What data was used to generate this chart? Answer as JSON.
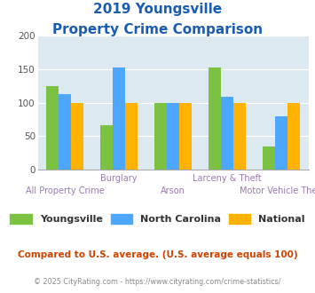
{
  "title_line1": "2019 Youngsville",
  "title_line2": "Property Crime Comparison",
  "categories": [
    "All Property Crime",
    "Burglary",
    "Arson",
    "Larceny & Theft",
    "Motor Vehicle Theft"
  ],
  "series": {
    "Youngsville": [
      125,
      67,
      100,
      152,
      35
    ],
    "North Carolina": [
      112,
      152,
      100,
      108,
      79
    ],
    "National": [
      100,
      100,
      100,
      100,
      100
    ]
  },
  "colors": {
    "Youngsville": "#7bc142",
    "North Carolina": "#4da6ff",
    "National": "#ffb300"
  },
  "ylim": [
    0,
    200
  ],
  "yticks": [
    0,
    50,
    100,
    150,
    200
  ],
  "background_color": "#dce9f0",
  "title_color": "#1a5cb0",
  "xlabel_color": "#9b7ab0",
  "legend_color": "#333333",
  "footer_text": "Compared to U.S. average. (U.S. average equals 100)",
  "copyright_text": "© 2025 CityRating.com - https://www.cityrating.com/crime-statistics/",
  "footer_color": "#cc4400",
  "copyright_color": "#888888",
  "upper_labels": {
    "1": "Burglary",
    "3": "Larceny & Theft"
  },
  "lower_labels": {
    "0": "All Property Crime",
    "2": "Arson",
    "4": "Motor Vehicle Theft"
  }
}
